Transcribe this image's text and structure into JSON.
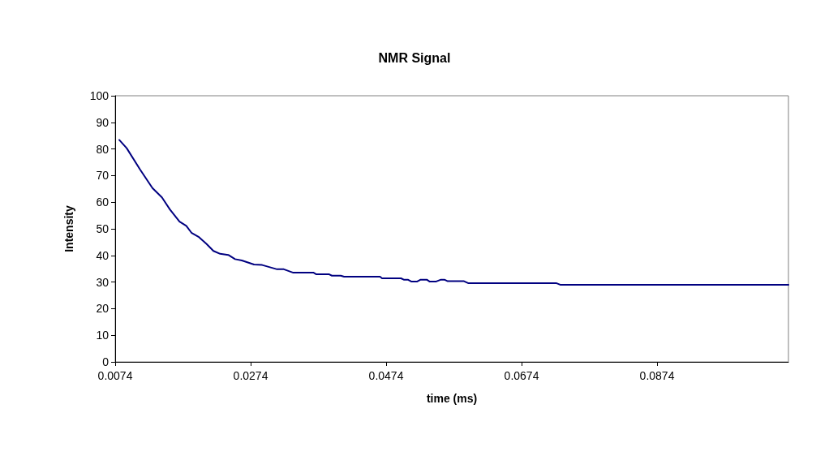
{
  "chart_data": {
    "type": "line",
    "title": "NMR Signal",
    "xlabel": "time (ms)",
    "ylabel": "Intensity",
    "xlim": [
      0.0074,
      0.1068
    ],
    "xticks": [
      0.0074,
      0.0274,
      0.0474,
      0.0674,
      0.0874
    ],
    "ylim": [
      0,
      100
    ],
    "yticks": [
      0,
      10,
      20,
      30,
      40,
      50,
      60,
      70,
      80,
      90,
      100
    ],
    "grid": false,
    "marker": "none",
    "line_style": "solid",
    "series": [
      {
        "color": "#000080",
        "x": [
          0.008,
          0.0091,
          0.0111,
          0.0129,
          0.0143,
          0.0155,
          0.0169,
          0.0179,
          0.0187,
          0.0197,
          0.0209,
          0.0219,
          0.0229,
          0.0241,
          0.0251,
          0.0261,
          0.0279,
          0.0291,
          0.0313,
          0.0323,
          0.0337,
          0.0367,
          0.0371,
          0.039,
          0.0394,
          0.0407,
          0.0412,
          0.0465,
          0.0468,
          0.0496,
          0.05,
          0.0506,
          0.0511,
          0.052,
          0.0525,
          0.0534,
          0.0538,
          0.0548,
          0.0555,
          0.056,
          0.0565,
          0.0589,
          0.0595,
          0.0725,
          0.0731,
          0.1068
        ],
        "values": [
          83.4,
          80.3,
          72.2,
          65.3,
          61.8,
          57.2,
          52.7,
          51.1,
          48.4,
          47.0,
          44.3,
          41.7,
          40.6,
          40.2,
          38.6,
          38.1,
          36.6,
          36.4,
          34.8,
          34.8,
          33.5,
          33.5,
          32.9,
          32.9,
          32.4,
          32.4,
          32.0,
          32.0,
          31.4,
          31.4,
          30.9,
          30.9,
          30.2,
          30.2,
          30.9,
          30.9,
          30.2,
          30.2,
          30.9,
          30.9,
          30.3,
          30.3,
          29.6,
          29.6,
          29.0,
          29.0
        ]
      }
    ]
  }
}
